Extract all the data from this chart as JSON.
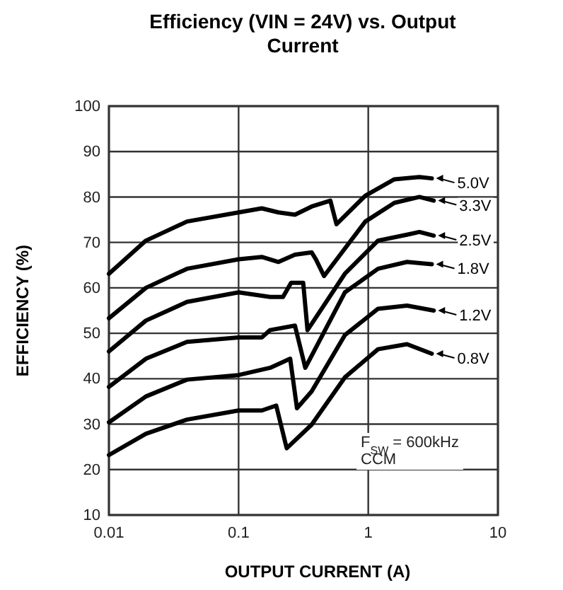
{
  "chart_data": {
    "type": "line",
    "title": "Efficiency (VIN = 24V) vs. Output Current",
    "xlabel": "OUTPUT CURRENT (A)",
    "ylabel": "EFFICIENCY (%)",
    "log": "x",
    "grid": true,
    "legend": "right",
    "xlim": [
      0.01,
      10
    ],
    "xticks": [
      0.01,
      0.1,
      1,
      10
    ],
    "ylim": [
      10,
      100
    ],
    "yticks": [
      10,
      20,
      30,
      40,
      50,
      60,
      70,
      80,
      90,
      100
    ],
    "series": [
      {
        "name": "5.0V",
        "color": "#000000",
        "x": [
          0.01,
          0.0193,
          0.04,
          0.1,
          0.151,
          0.203,
          0.272,
          0.366,
          0.51,
          0.569,
          0.95,
          1.59,
          2.48,
          3.09
        ],
        "values": [
          63.1,
          70.4,
          74.6,
          76.6,
          77.5,
          76.6,
          76.1,
          77.9,
          79.2,
          74.0,
          80.3,
          83.9,
          84.4,
          84.1
        ]
      },
      {
        "name": "3.3V",
        "color": "#000000",
        "x": [
          0.01,
          0.0193,
          0.04,
          0.1,
          0.151,
          0.203,
          0.272,
          0.366,
          0.394,
          0.456,
          0.95,
          1.59,
          2.48,
          3.2
        ],
        "values": [
          53.3,
          60.0,
          64.2,
          66.3,
          66.8,
          65.7,
          67.3,
          67.8,
          66.3,
          62.6,
          74.6,
          78.7,
          80.0,
          79.2
        ]
      },
      {
        "name": "2.5V",
        "color": "#000000",
        "x": [
          0.01,
          0.0193,
          0.04,
          0.1,
          0.175,
          0.22,
          0.254,
          0.315,
          0.34,
          0.66,
          1.19,
          1.99,
          2.48,
          3.2
        ],
        "values": [
          46.0,
          52.8,
          56.9,
          59.0,
          58.0,
          58.0,
          61.1,
          61.1,
          50.7,
          63.1,
          70.4,
          71.7,
          72.3,
          71.5
        ]
      },
      {
        "name": "1.8V",
        "color": "#000000",
        "x": [
          0.01,
          0.0193,
          0.04,
          0.1,
          0.151,
          0.175,
          0.272,
          0.327,
          0.66,
          1.19,
          1.99,
          3.09
        ],
        "values": [
          38.2,
          44.4,
          48.1,
          49.1,
          49.1,
          50.7,
          51.7,
          42.4,
          59.0,
          64.2,
          65.7,
          65.2
        ]
      },
      {
        "name": "1.2V",
        "color": "#000000",
        "x": [
          0.01,
          0.0193,
          0.04,
          0.1,
          0.175,
          0.25,
          0.282,
          0.366,
          0.66,
          1.19,
          1.99,
          3.2
        ],
        "values": [
          30.4,
          36.1,
          39.8,
          40.8,
          42.4,
          44.4,
          33.5,
          37.2,
          49.6,
          55.4,
          56.1,
          55.0
        ]
      },
      {
        "name": "0.8V",
        "color": "#000000",
        "x": [
          0.01,
          0.0193,
          0.04,
          0.1,
          0.151,
          0.195,
          0.235,
          0.366,
          0.66,
          1.19,
          1.99,
          3.09
        ],
        "values": [
          23.2,
          27.9,
          31.0,
          33.0,
          33.0,
          34.1,
          24.7,
          29.9,
          40.3,
          46.5,
          47.6,
          45.5
        ]
      }
    ],
    "annotations": [
      "F$_{SW}$ = 600kHz",
      "CCM"
    ]
  }
}
